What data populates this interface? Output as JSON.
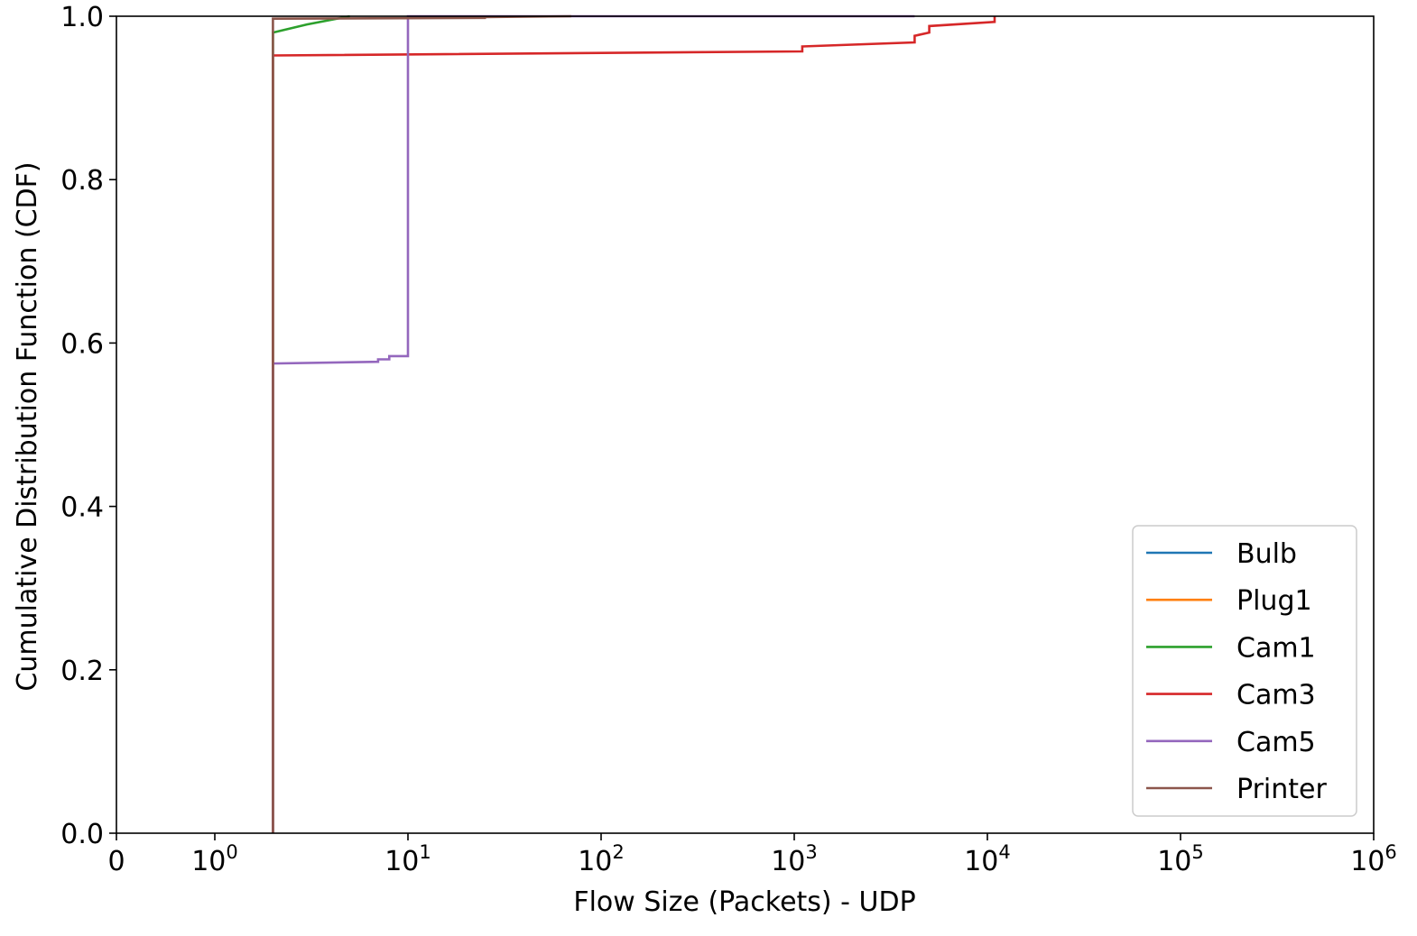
{
  "chart_data": {
    "type": "line",
    "subtype": "cdf-step",
    "title": "",
    "xlabel": "Flow Size (Packets) - UDP",
    "ylabel": "Cumulative Distribution Function (CDF)",
    "xscale": "symlog",
    "xlim": [
      0,
      1000000
    ],
    "ylim": [
      0.0,
      1.0
    ],
    "grid": false,
    "legend_position": "lower right",
    "x_ticks": [
      {
        "label": "0"
      },
      {
        "label": "10",
        "sup": "0"
      },
      {
        "label": "10",
        "sup": "1"
      },
      {
        "label": "10",
        "sup": "2"
      },
      {
        "label": "10",
        "sup": "3"
      },
      {
        "label": "10",
        "sup": "4"
      },
      {
        "label": "10",
        "sup": "5"
      },
      {
        "label": "10",
        "sup": "6"
      }
    ],
    "y_ticks": [
      "0.0",
      "0.2",
      "0.4",
      "0.6",
      "0.8",
      "1.0"
    ],
    "series": [
      {
        "name": "Bulb",
        "color": "#1f77b4",
        "points": []
      },
      {
        "name": "Plug1",
        "color": "#ff7f0e",
        "points": []
      },
      {
        "name": "Cam1",
        "color": "#2ca02c",
        "points": [
          [
            2,
            0
          ],
          [
            2,
            0.98
          ],
          [
            3,
            0.99
          ],
          [
            5,
            1.0
          ]
        ]
      },
      {
        "name": "Cam3",
        "color": "#d62728",
        "points": [
          [
            2,
            0
          ],
          [
            2,
            0.952
          ],
          [
            1100,
            0.957
          ],
          [
            1100,
            0.963
          ],
          [
            4200,
            0.968
          ],
          [
            4200,
            0.976
          ],
          [
            5000,
            0.98
          ],
          [
            5000,
            0.988
          ],
          [
            10900,
            0.993
          ],
          [
            10900,
            1.0
          ]
        ]
      },
      {
        "name": "Cam5",
        "color": "#9467bd",
        "points": [
          [
            2,
            0
          ],
          [
            2,
            0.575
          ],
          [
            7,
            0.577
          ],
          [
            7,
            0.58
          ],
          [
            8,
            0.58
          ],
          [
            8,
            0.584
          ],
          [
            10,
            0.584
          ],
          [
            10,
            1.0
          ],
          [
            4200,
            1.0
          ]
        ]
      },
      {
        "name": "Printer",
        "color": "#8c564b",
        "points": [
          [
            2,
            0
          ],
          [
            2,
            0.997
          ],
          [
            25,
            0.998
          ],
          [
            25,
            0.999
          ],
          [
            70,
            1.0
          ]
        ]
      }
    ]
  }
}
